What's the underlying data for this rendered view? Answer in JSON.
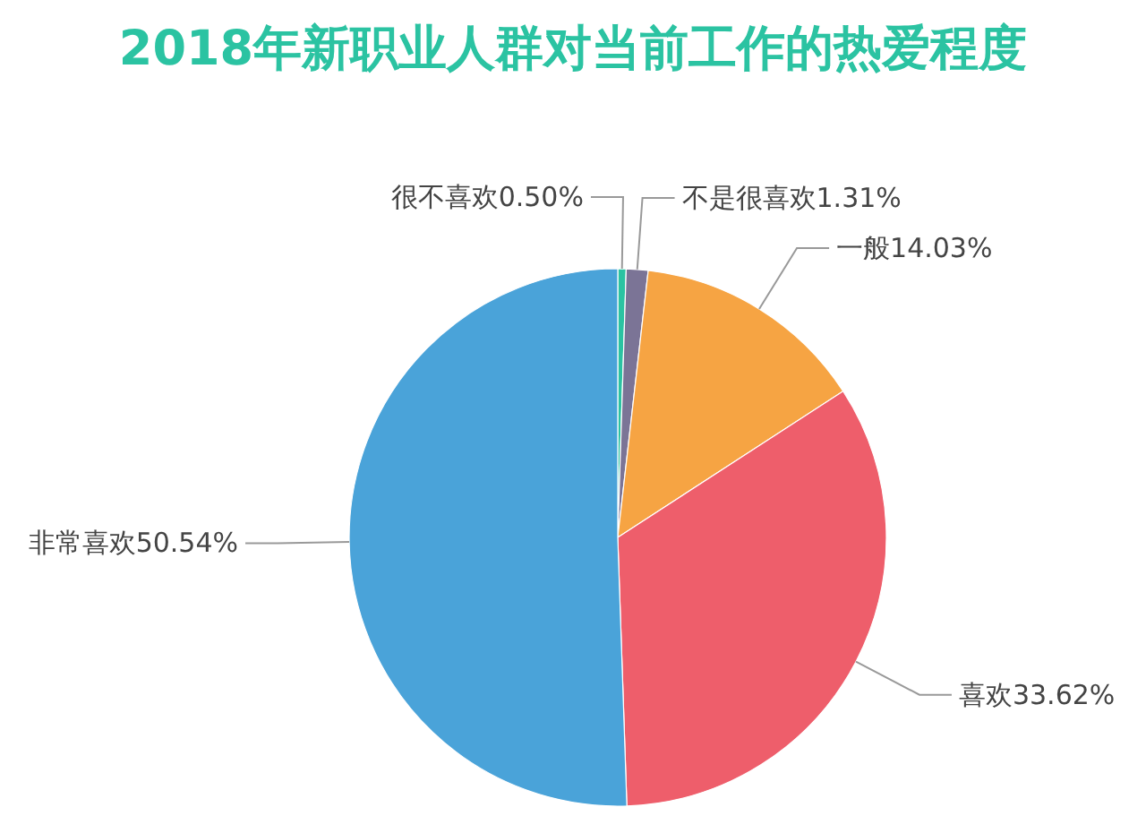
{
  "chart_data": {
    "type": "pie",
    "title": "2018年新职业人群对当前工作的热爱程度",
    "categories": [
      "很不喜欢",
      "不是很喜欢",
      "一般",
      "喜欢",
      "非常喜欢"
    ],
    "values": [
      0.5,
      1.31,
      14.03,
      33.62,
      50.54
    ],
    "value_labels": [
      "0.50%",
      "1.31%",
      "14.03%",
      "33.62%",
      "50.54%"
    ],
    "colors": [
      "#2bc3a2",
      "#7b7496",
      "#f6a443",
      "#ee5e6b",
      "#4aa3d9"
    ]
  }
}
